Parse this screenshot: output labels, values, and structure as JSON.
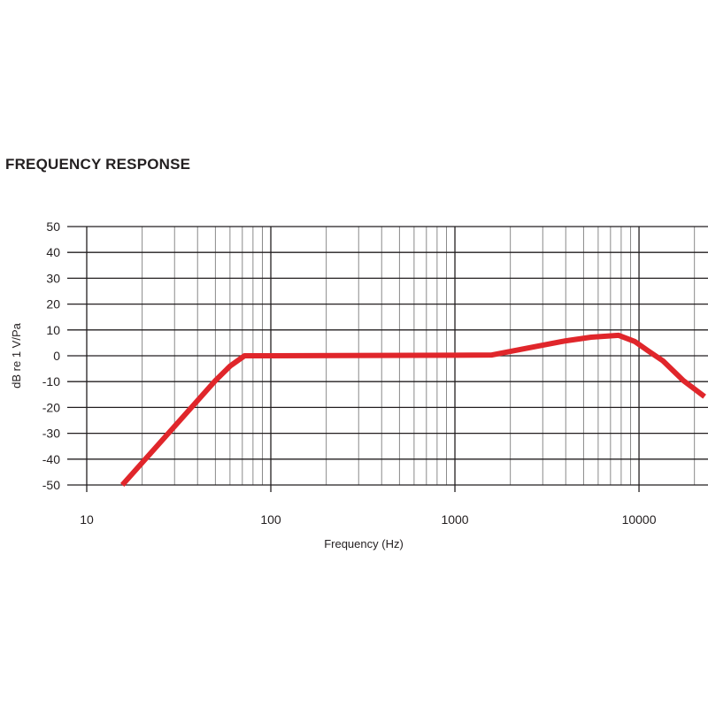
{
  "chart_data": {
    "type": "line",
    "title": "FREQUENCY RESPONSE",
    "xlabel": "Frequency (Hz)",
    "ylabel": "dB re 1 V/Pa",
    "x_scale": "log",
    "xlim": [
      10,
      23700
    ],
    "ylim": [
      -50,
      50
    ],
    "x_ticks": [
      10,
      100,
      1000,
      10000
    ],
    "x_tick_labels": [
      "10",
      "100",
      "1000",
      "10000"
    ],
    "y_ticks": [
      50,
      40,
      30,
      20,
      10,
      0,
      -10,
      -20,
      -30,
      -40,
      -50
    ],
    "y_tick_labels": [
      "50",
      "40",
      "30",
      "20",
      "10",
      "0",
      "-10",
      "-20",
      "-30",
      "-40",
      "-50"
    ],
    "grid": true,
    "line_color": "#e0262b",
    "series": [
      {
        "x": [
          15.6,
          50,
          60,
          72,
          100,
          1000,
          1590,
          2500,
          4000,
          5500,
          7760,
          9500,
          11170,
          13500,
          17400,
          22700
        ],
        "y": [
          -50,
          -9.6,
          -4,
          0,
          0,
          0.2,
          0.3,
          3,
          5.8,
          7.2,
          7.9,
          5.5,
          2,
          -2,
          -9.6,
          -15.8
        ]
      }
    ]
  }
}
